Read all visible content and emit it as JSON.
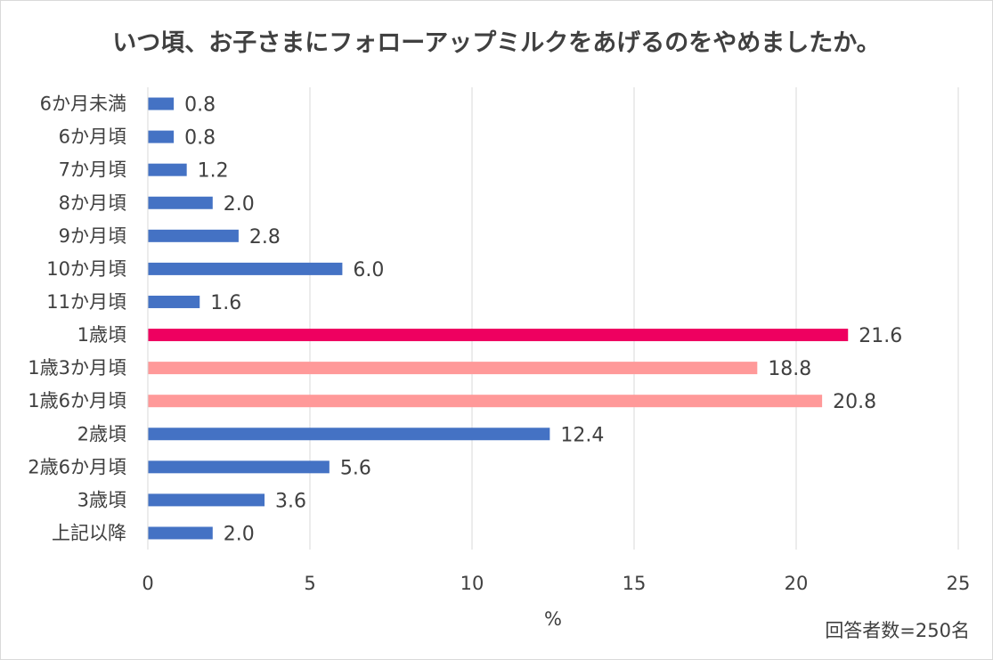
{
  "chart_data": {
    "type": "bar",
    "orientation": "horizontal",
    "title": "いつ頃、お子さまにフォローアップミルクをあげるのをやめましたか。",
    "categories": [
      "6か月未満",
      "6か月頃",
      "7か月頃",
      "8か月頃",
      "9か月頃",
      "10か月頃",
      "11か月頃",
      "1歳頃",
      "1歳3か月頃",
      "1歳6か月頃",
      "2歳頃",
      "2歳6か月頃",
      "3歳頃",
      "上記以降"
    ],
    "values": [
      0.8,
      0.8,
      1.2,
      2.0,
      2.8,
      6.0,
      1.6,
      21.6,
      18.8,
      20.8,
      12.4,
      5.6,
      3.6,
      2.0
    ],
    "value_labels": [
      "0.8",
      "0.8",
      "1.2",
      "2.0",
      "2.8",
      "6.0",
      "1.6",
      "21.6",
      "18.8",
      "20.8",
      "12.4",
      "5.6",
      "3.6",
      "2.0"
    ],
    "bar_colors": [
      "#4472c4",
      "#4472c4",
      "#4472c4",
      "#4472c4",
      "#4472c4",
      "#4472c4",
      "#4472c4",
      "#ee0060",
      "#ff9999",
      "#ff9999",
      "#4472c4",
      "#4472c4",
      "#4472c4",
      "#4472c4"
    ],
    "xlabel": "%",
    "xlim": [
      0,
      25
    ],
    "xticks": [
      "0",
      "5",
      "10",
      "15",
      "20",
      "25"
    ],
    "grid": true,
    "note": "回答者数=250名"
  }
}
